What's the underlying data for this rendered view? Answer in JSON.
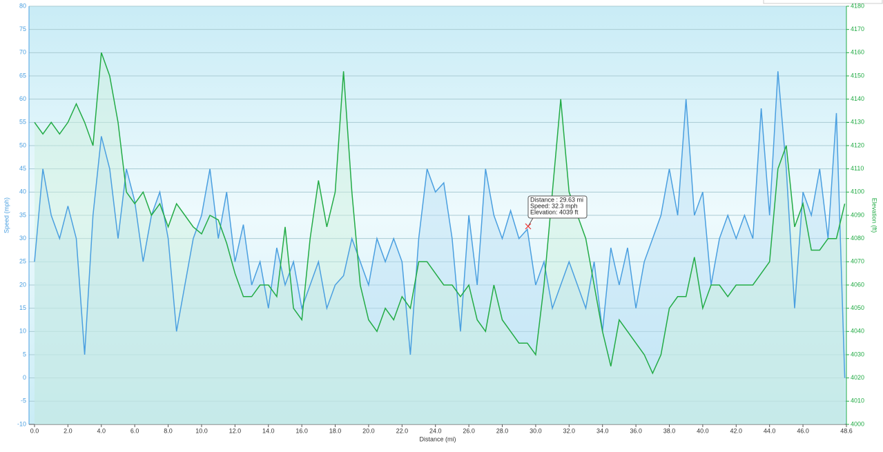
{
  "chart_data": {
    "type": "line",
    "x_label": "Distance  (mi)",
    "y_label": "Speed (mph)",
    "y2_label": "Elevation (ft)",
    "x": [
      0,
      0.5,
      1,
      1.5,
      2,
      2.5,
      3,
      3.5,
      4,
      4.5,
      5,
      5.5,
      6,
      6.5,
      7,
      7.5,
      8,
      8.5,
      9,
      9.5,
      10,
      10.5,
      11,
      11.5,
      12,
      12.5,
      13,
      13.5,
      14,
      14.5,
      15,
      15.5,
      16,
      16.5,
      17,
      17.5,
      18,
      18.5,
      19,
      19.5,
      20,
      20.5,
      21,
      21.5,
      22,
      22.5,
      23,
      23.5,
      24,
      24.5,
      25,
      25.5,
      26,
      26.5,
      27,
      27.5,
      28,
      28.5,
      29,
      29.5,
      30,
      30.5,
      31,
      31.5,
      32,
      32.5,
      33,
      33.5,
      34,
      34.5,
      35,
      35.5,
      36,
      36.5,
      37,
      37.5,
      38,
      38.5,
      39,
      39.5,
      40,
      40.5,
      41,
      41.5,
      42,
      42.5,
      43,
      43.5,
      44,
      44.5,
      45,
      45.5,
      46,
      46.5,
      47,
      47.5,
      48,
      48.5
    ],
    "series": [
      {
        "name": "Speed",
        "color": "#4a9fe0",
        "fill": "#b9def5",
        "values": [
          25,
          45,
          35,
          30,
          37,
          30,
          5,
          35,
          52,
          45,
          30,
          45,
          38,
          25,
          35,
          40,
          30,
          10,
          20,
          30,
          35,
          45,
          30,
          40,
          25,
          33,
          20,
          25,
          15,
          28,
          20,
          25,
          15,
          20,
          25,
          15,
          20,
          22,
          30,
          25,
          20,
          30,
          25,
          30,
          25,
          5,
          30,
          45,
          40,
          42,
          30,
          10,
          35,
          20,
          45,
          35,
          30,
          36,
          30,
          32,
          20,
          25,
          15,
          20,
          25,
          20,
          15,
          25,
          10,
          28,
          20,
          28,
          15,
          25,
          30,
          35,
          45,
          35,
          60,
          35,
          40,
          20,
          30,
          35,
          30,
          35,
          30,
          58,
          35,
          66,
          45,
          15,
          40,
          35,
          45,
          30,
          57,
          0
        ]
      },
      {
        "name": "Elevation",
        "color": "#22ab45",
        "fill": "#cdf0dc",
        "axis": "y2",
        "values": [
          4130,
          4125,
          4130,
          4125,
          4130,
          4138,
          4130,
          4120,
          4160,
          4150,
          4130,
          4100,
          4095,
          4100,
          4090,
          4095,
          4085,
          4095,
          4090,
          4085,
          4082,
          4090,
          4088,
          4078,
          4065,
          4055,
          4055,
          4060,
          4060,
          4055,
          4085,
          4050,
          4045,
          4080,
          4105,
          4085,
          4100,
          4152,
          4100,
          4060,
          4045,
          4040,
          4050,
          4045,
          4055,
          4050,
          4070,
          4070,
          4065,
          4060,
          4060,
          4055,
          4060,
          4045,
          4040,
          4060,
          4045,
          4040,
          4035,
          4035,
          4030,
          4060,
          4100,
          4140,
          4100,
          4090,
          4080,
          4060,
          4040,
          4025,
          4045,
          4040,
          4035,
          4030,
          4022,
          4030,
          4050,
          4055,
          4055,
          4072,
          4050,
          4060,
          4060,
          4055,
          4060,
          4060,
          4060,
          4065,
          4070,
          4110,
          4120,
          4085,
          4095,
          4075,
          4075,
          4080,
          4080,
          4095
        ]
      }
    ],
    "xlim": [
      -0.33,
      48.6
    ],
    "xticks": [
      {
        "value": 0,
        "label": "0.0"
      },
      {
        "value": 2,
        "label": "2.0"
      },
      {
        "value": 4,
        "label": "4.0"
      },
      {
        "value": 6,
        "label": "6.0"
      },
      {
        "value": 8,
        "label": "8.0"
      },
      {
        "value": 10,
        "label": "10.0"
      },
      {
        "value": 12,
        "label": "12.0"
      },
      {
        "value": 14,
        "label": "14.0"
      },
      {
        "value": 16,
        "label": "16.0"
      },
      {
        "value": 18,
        "label": "18.0"
      },
      {
        "value": 20,
        "label": "20.0"
      },
      {
        "value": 22,
        "label": "22.0"
      },
      {
        "value": 24,
        "label": "24.0"
      },
      {
        "value": 26,
        "label": "26.0"
      },
      {
        "value": 28,
        "label": "28.0"
      },
      {
        "value": 30,
        "label": "30.0"
      },
      {
        "value": 32,
        "label": "32.0"
      },
      {
        "value": 34,
        "label": "34.0"
      },
      {
        "value": 36,
        "label": "36.0"
      },
      {
        "value": 38,
        "label": "38.0"
      },
      {
        "value": 40,
        "label": "40.0"
      },
      {
        "value": 42,
        "label": "42.0"
      },
      {
        "value": 44,
        "label": "44.0"
      },
      {
        "value": 46,
        "label": "46.0"
      },
      48.6
    ],
    "ylim": [
      -10,
      80
    ],
    "yticks": [
      -10,
      -5,
      0,
      5,
      10,
      15,
      20,
      25,
      30,
      35,
      40,
      45,
      50,
      55,
      60,
      65,
      70,
      75,
      80
    ],
    "y2lim": [
      4000,
      4180
    ],
    "y2ticks": [
      4000,
      4010,
      4020,
      4030,
      4040,
      4050,
      4060,
      4070,
      4080,
      4090,
      4100,
      4110,
      4120,
      4130,
      4140,
      4150,
      4160,
      4170,
      4180
    ],
    "grid": true,
    "tooltip": [
      "Distance : 29.63 mi",
      "Speed: 32.3 mph",
      "Elevation: 4039 ft"
    ]
  }
}
